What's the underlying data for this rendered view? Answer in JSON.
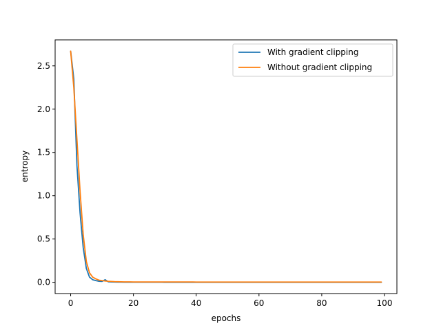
{
  "chart_data": {
    "type": "line",
    "title": "",
    "xlabel": "epochs",
    "ylabel": "entropy",
    "xlim": [
      -4.95,
      103.95
    ],
    "ylim": [
      -0.13,
      2.8
    ],
    "xticks": [
      0,
      20,
      40,
      60,
      80,
      100
    ],
    "xtick_labels": [
      "0",
      "20",
      "40",
      "60",
      "80",
      "100"
    ],
    "yticks": [
      0.0,
      0.5,
      1.0,
      1.5,
      2.0,
      2.5
    ],
    "ytick_labels": [
      "0.0",
      "0.5",
      "1.0",
      "1.5",
      "2.0",
      "2.5"
    ],
    "grid": false,
    "legend": "top-right",
    "x": [
      0,
      1,
      2,
      3,
      4,
      5,
      6,
      7,
      8,
      9,
      10,
      11,
      12,
      13,
      14,
      15,
      16,
      17,
      18,
      19,
      20,
      21,
      22,
      23,
      24,
      25,
      26,
      27,
      28,
      29,
      30,
      31,
      32,
      33,
      34,
      35,
      36,
      37,
      38,
      39,
      40,
      41,
      42,
      43,
      44,
      45,
      46,
      47,
      48,
      49,
      50,
      51,
      52,
      53,
      54,
      55,
      56,
      57,
      58,
      59,
      60,
      61,
      62,
      63,
      64,
      65,
      66,
      67,
      68,
      69,
      70,
      71,
      72,
      73,
      74,
      75,
      76,
      77,
      78,
      79,
      80,
      81,
      82,
      83,
      84,
      85,
      86,
      87,
      88,
      89,
      90,
      91,
      92,
      93,
      94,
      95,
      96,
      97,
      98,
      99
    ],
    "series": [
      {
        "name": "With gradient clipping",
        "color": "#1f77b4",
        "values": [
          2.67,
          2.35,
          1.35,
          0.8,
          0.4,
          0.16,
          0.06,
          0.03,
          0.02,
          0.012,
          0.01,
          0.03,
          0.006,
          0.004,
          0.003,
          0.002,
          0.002,
          0.001,
          0.001,
          0.001,
          0.001,
          0.001,
          0.001,
          0.001,
          0.001,
          0.001,
          0.001,
          0.001,
          0.001,
          0.001,
          0.0005,
          0.0005,
          0.0005,
          0.0005,
          0.0005,
          0.0005,
          0.0005,
          0.0005,
          0.0005,
          0.0005,
          0.0005,
          0.0005,
          0.0005,
          0.0005,
          0.0005,
          0.0005,
          0.0005,
          0.0005,
          0.0005,
          0.0005,
          0.0005,
          0.0005,
          0.0005,
          0.0005,
          0.0005,
          0.0005,
          0.0005,
          0.0005,
          0.0005,
          0.0005,
          0.0005,
          0.0005,
          0.0005,
          0.0005,
          0.0005,
          0.0005,
          0.0005,
          0.0005,
          0.0005,
          0.0005,
          0.0005,
          0.0005,
          0.0005,
          0.0005,
          0.0005,
          0.0005,
          0.0005,
          0.0005,
          0.0005,
          0.0005,
          0.0005,
          0.0005,
          0.0005,
          0.0005,
          0.0005,
          0.0005,
          0.0005,
          0.0005,
          0.0005,
          0.0005,
          0.0005,
          0.0005,
          0.0005,
          0.0005,
          0.0005,
          0.0005,
          0.0005,
          0.0005,
          0.0005,
          0.0005
        ]
      },
      {
        "name": "Without gradient clipping",
        "color": "#ff7f0e",
        "values": [
          2.67,
          2.25,
          1.65,
          1.05,
          0.55,
          0.24,
          0.11,
          0.06,
          0.04,
          0.025,
          0.02,
          0.015,
          0.012,
          0.01,
          0.008,
          0.007,
          0.006,
          0.005,
          0.005,
          0.005,
          0.004,
          0.004,
          0.004,
          0.004,
          0.004,
          0.004,
          0.004,
          0.004,
          0.004,
          0.004,
          0.004,
          0.004,
          0.004,
          0.004,
          0.004,
          0.004,
          0.004,
          0.004,
          0.004,
          0.004,
          0.003,
          0.003,
          0.003,
          0.003,
          0.003,
          0.003,
          0.003,
          0.003,
          0.003,
          0.003,
          0.003,
          0.003,
          0.003,
          0.003,
          0.003,
          0.003,
          0.003,
          0.003,
          0.003,
          0.003,
          0.003,
          0.003,
          0.003,
          0.003,
          0.003,
          0.003,
          0.003,
          0.003,
          0.003,
          0.003,
          0.003,
          0.003,
          0.003,
          0.003,
          0.003,
          0.003,
          0.003,
          0.003,
          0.003,
          0.003,
          0.003,
          0.003,
          0.003,
          0.003,
          0.003,
          0.003,
          0.003,
          0.003,
          0.003,
          0.003,
          0.003,
          0.003,
          0.003,
          0.003,
          0.003,
          0.003,
          0.003,
          0.003,
          0.003,
          0.003
        ]
      }
    ]
  }
}
